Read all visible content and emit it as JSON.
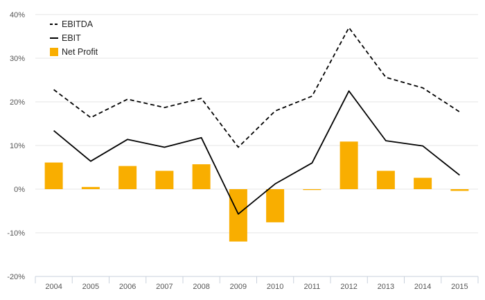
{
  "chart_data": {
    "type": "bar",
    "categories": [
      "2004",
      "2005",
      "2006",
      "2007",
      "2008",
      "2009",
      "2010",
      "2011",
      "2012",
      "2013",
      "2014",
      "2015"
    ],
    "series": [
      {
        "name": "EBITDA",
        "kind": "line",
        "style": "dashed",
        "color": "#000000",
        "values": [
          22.8,
          16.4,
          20.6,
          18.7,
          20.8,
          9.6,
          17.9,
          21.3,
          37.0,
          25.6,
          23.2,
          17.7
        ]
      },
      {
        "name": "EBIT",
        "kind": "line",
        "style": "solid",
        "color": "#000000",
        "values": [
          13.4,
          6.4,
          11.4,
          9.6,
          11.8,
          -5.7,
          1.2,
          6.0,
          22.5,
          11.1,
          9.9,
          3.2
        ]
      },
      {
        "name": "Net Profit",
        "kind": "bar",
        "color": "#F9AE00",
        "values": [
          6.1,
          0.5,
          5.3,
          4.2,
          5.7,
          -12.0,
          -7.6,
          -0.2,
          10.9,
          4.2,
          2.6,
          -0.4
        ]
      }
    ],
    "yticks": [
      "40%",
      "30%",
      "20%",
      "10%",
      "0%",
      "-10%",
      "-20%"
    ],
    "ylim": [
      -20,
      40
    ],
    "grid": "horizontal",
    "legend": "top-left",
    "title": "",
    "xlabel": "",
    "ylabel": ""
  }
}
